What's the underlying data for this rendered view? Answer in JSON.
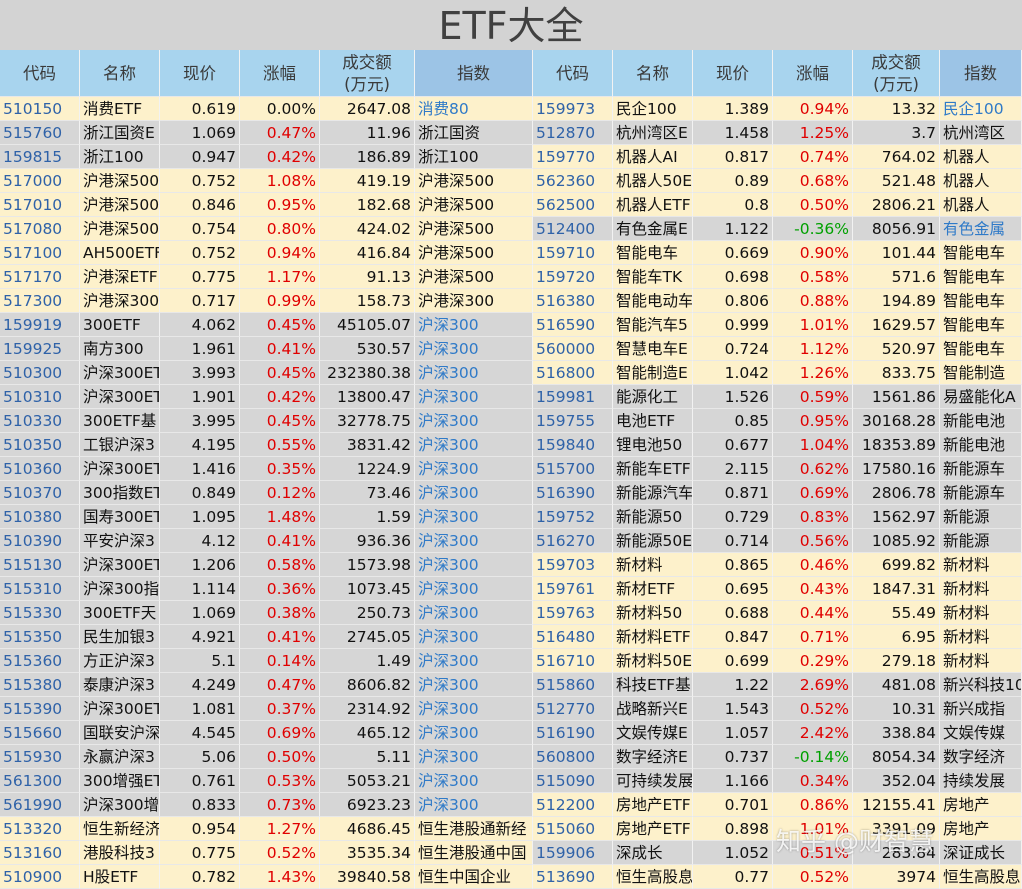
{
  "title": "ETF大全",
  "headers": [
    "代码",
    "名称",
    "现价",
    "涨幅",
    "成交额",
    "指数"
  ],
  "amount_unit": "(万元)",
  "watermark": "知乎 @财智慧",
  "left_rows": [
    {
      "bg": "#fdf1cb",
      "link": true,
      "cells": [
        "510150",
        "消费ETF",
        0.619,
        "0.00%",
        2647.08,
        "消费80"
      ]
    },
    {
      "bg": "#d6d6d6",
      "cells": [
        "515760",
        "浙江国资E",
        1.069,
        "0.47%",
        11.96,
        "浙江国资"
      ]
    },
    {
      "bg": "#d6d6d6",
      "cells": [
        "159815",
        "浙江100",
        0.947,
        "0.42%",
        186.89,
        "浙江100"
      ]
    },
    {
      "bg": "#fdf1cb",
      "cells": [
        "517000",
        "沪港深500",
        0.752,
        "1.08%",
        419.19,
        "沪港深500"
      ]
    },
    {
      "bg": "#fdf1cb",
      "cells": [
        "517010",
        "沪港深500",
        0.846,
        "0.95%",
        182.68,
        "沪港深500"
      ]
    },
    {
      "bg": "#fdf1cb",
      "cells": [
        "517080",
        "沪港深500",
        0.754,
        "0.80%",
        424.02,
        "沪港深500"
      ]
    },
    {
      "bg": "#fdf1cb",
      "cells": [
        "517100",
        "AH500ETF",
        0.752,
        "0.94%",
        416.84,
        "沪港深500"
      ]
    },
    {
      "bg": "#fdf1cb",
      "cells": [
        "517170",
        "沪港深ETF",
        0.775,
        "1.17%",
        91.13,
        "沪港深500"
      ]
    },
    {
      "bg": "#fdf1cb",
      "cells": [
        "517300",
        "沪港深300",
        0.717,
        "0.99%",
        158.73,
        "沪港深300"
      ]
    },
    {
      "bg": "#d6d6d6",
      "link": true,
      "cells": [
        "159919",
        "300ETF",
        4.062,
        "0.45%",
        45105.07,
        "沪深300"
      ]
    },
    {
      "bg": "#d6d6d6",
      "link": true,
      "cells": [
        "159925",
        "南方300",
        1.961,
        "0.41%",
        530.57,
        "沪深300"
      ]
    },
    {
      "bg": "#d6d6d6",
      "link": true,
      "cells": [
        "510300",
        "沪深300ET",
        3.993,
        "0.45%",
        232380.38,
        "沪深300"
      ]
    },
    {
      "bg": "#d6d6d6",
      "link": true,
      "cells": [
        "510310",
        "沪深300ET",
        1.901,
        "0.42%",
        13800.47,
        "沪深300"
      ]
    },
    {
      "bg": "#d6d6d6",
      "link": true,
      "cells": [
        "510330",
        "300ETF基",
        3.995,
        "0.45%",
        32778.75,
        "沪深300"
      ]
    },
    {
      "bg": "#d6d6d6",
      "link": true,
      "cells": [
        "510350",
        "工银沪深3",
        4.195,
        "0.55%",
        3831.42,
        "沪深300"
      ]
    },
    {
      "bg": "#d6d6d6",
      "link": true,
      "cells": [
        "510360",
        "沪深300ET",
        1.416,
        "0.35%",
        1224.9,
        "沪深300"
      ]
    },
    {
      "bg": "#d6d6d6",
      "link": true,
      "cells": [
        "510370",
        "300指数ET",
        0.849,
        "0.12%",
        73.46,
        "沪深300"
      ]
    },
    {
      "bg": "#d6d6d6",
      "link": true,
      "cells": [
        "510380",
        "国寿300ET",
        1.095,
        "1.48%",
        1.59,
        "沪深300"
      ]
    },
    {
      "bg": "#d6d6d6",
      "link": true,
      "cells": [
        "510390",
        "平安沪深3",
        4.12,
        "0.41%",
        936.36,
        "沪深300"
      ]
    },
    {
      "bg": "#d6d6d6",
      "link": true,
      "cells": [
        "515130",
        "沪深300ET",
        1.206,
        "0.58%",
        1573.98,
        "沪深300"
      ]
    },
    {
      "bg": "#d6d6d6",
      "link": true,
      "cells": [
        "515310",
        "沪深300指",
        1.114,
        "0.36%",
        1073.45,
        "沪深300"
      ]
    },
    {
      "bg": "#d6d6d6",
      "link": true,
      "cells": [
        "515330",
        "300ETF天",
        1.069,
        "0.38%",
        250.73,
        "沪深300"
      ]
    },
    {
      "bg": "#d6d6d6",
      "link": true,
      "cells": [
        "515350",
        "民生加银3",
        4.921,
        "0.41%",
        2745.05,
        "沪深300"
      ]
    },
    {
      "bg": "#d6d6d6",
      "link": true,
      "cells": [
        "515360",
        "方正沪深3",
        5.1,
        "0.14%",
        1.49,
        "沪深300"
      ]
    },
    {
      "bg": "#d6d6d6",
      "link": true,
      "cells": [
        "515380",
        "泰康沪深3",
        4.249,
        "0.47%",
        8606.82,
        "沪深300"
      ]
    },
    {
      "bg": "#d6d6d6",
      "link": true,
      "cells": [
        "515390",
        "沪深300ET",
        1.081,
        "0.37%",
        2314.92,
        "沪深300"
      ]
    },
    {
      "bg": "#d6d6d6",
      "link": true,
      "cells": [
        "515660",
        "国联安沪深",
        4.545,
        "0.69%",
        465.12,
        "沪深300"
      ]
    },
    {
      "bg": "#d6d6d6",
      "link": true,
      "cells": [
        "515930",
        "永赢沪深3",
        5.06,
        "0.50%",
        5.11,
        "沪深300"
      ]
    },
    {
      "bg": "#d6d6d6",
      "link": true,
      "cells": [
        "561300",
        "300增强ET",
        0.761,
        "0.53%",
        5053.21,
        "沪深300"
      ]
    },
    {
      "bg": "#d6d6d6",
      "link": true,
      "cells": [
        "561990",
        "沪深300增",
        0.833,
        "0.73%",
        6923.23,
        "沪深300"
      ]
    },
    {
      "bg": "#fdf1cb",
      "cells": [
        "513320",
        "恒生新经济",
        0.954,
        "1.27%",
        4686.45,
        "恒生港股通新经"
      ]
    },
    {
      "bg": "#fdf1cb",
      "cells": [
        "513160",
        "港股科技3",
        0.775,
        "0.52%",
        3535.34,
        "恒生港股通中国"
      ]
    },
    {
      "bg": "#fdf1cb",
      "cells": [
        "510900",
        "H股ETF",
        0.782,
        "1.43%",
        39840.58,
        "恒生中国企业"
      ]
    }
  ],
  "right_rows": [
    {
      "bg": "#fdf1cb",
      "link": true,
      "cells": [
        "159973",
        "民企100",
        1.389,
        "0.94%",
        13.32,
        "民企100"
      ]
    },
    {
      "bg": "#d6d6d6",
      "cells": [
        "512870",
        "杭州湾区E",
        1.458,
        "1.25%",
        3.7,
        "杭州湾区"
      ]
    },
    {
      "bg": "#fdf1cb",
      "cells": [
        "159770",
        "机器人AI",
        0.817,
        "0.74%",
        764.02,
        "机器人"
      ]
    },
    {
      "bg": "#fdf1cb",
      "cells": [
        "562360",
        "机器人50E",
        0.89,
        "0.68%",
        521.48,
        "机器人"
      ]
    },
    {
      "bg": "#fdf1cb",
      "cells": [
        "562500",
        "机器人ETF",
        0.8,
        "0.50%",
        2806.21,
        "机器人"
      ]
    },
    {
      "bg": "#d6d6d6",
      "link": true,
      "cells": [
        "512400",
        "有色金属E",
        1.122,
        "-0.36%",
        8056.91,
        "有色金属"
      ]
    },
    {
      "bg": "#fdf1cb",
      "cells": [
        "159710",
        "智能电车",
        0.669,
        "0.90%",
        101.44,
        "智能电车"
      ]
    },
    {
      "bg": "#fdf1cb",
      "cells": [
        "159720",
        "智能车TK",
        0.698,
        "0.58%",
        571.6,
        "智能电车"
      ]
    },
    {
      "bg": "#fdf1cb",
      "cells": [
        "516380",
        "智能电动车",
        0.806,
        "0.88%",
        194.89,
        "智能电车"
      ]
    },
    {
      "bg": "#fdf1cb",
      "cells": [
        "516590",
        "智能汽车5",
        0.999,
        "1.01%",
        1629.57,
        "智能电车"
      ]
    },
    {
      "bg": "#fdf1cb",
      "cells": [
        "560000",
        "智慧电车E",
        0.724,
        "1.12%",
        520.97,
        "智能电车"
      ]
    },
    {
      "bg": "#fdf1cb",
      "cells": [
        "516800",
        "智能制造E",
        1.042,
        "1.26%",
        833.75,
        "智能制造"
      ]
    },
    {
      "bg": "#d6d6d6",
      "cells": [
        "159981",
        "能源化工",
        1.526,
        "0.59%",
        1561.86,
        "易盛能化A"
      ]
    },
    {
      "bg": "#d6d6d6",
      "cells": [
        "159755",
        "电池ETF",
        0.85,
        "0.95%",
        30168.28,
        "新能电池"
      ]
    },
    {
      "bg": "#d6d6d6",
      "cells": [
        "159840",
        "锂电池50",
        0.677,
        "1.04%",
        18353.89,
        "新能电池"
      ]
    },
    {
      "bg": "#d6d6d6",
      "cells": [
        "515700",
        "新能车ETF",
        2.115,
        "0.62%",
        17580.16,
        "新能源车"
      ]
    },
    {
      "bg": "#d6d6d6",
      "cells": [
        "516390",
        "新能源汽车",
        0.871,
        "0.69%",
        2806.78,
        "新能源车"
      ]
    },
    {
      "bg": "#d6d6d6",
      "cells": [
        "159752",
        "新能源50",
        0.729,
        "0.83%",
        1562.97,
        "新能源"
      ]
    },
    {
      "bg": "#d6d6d6",
      "cells": [
        "516270",
        "新能源50E",
        0.714,
        "0.56%",
        1085.92,
        "新能源"
      ]
    },
    {
      "bg": "#fdf1cb",
      "cells": [
        "159703",
        "新材料",
        0.865,
        "0.46%",
        699.82,
        "新材料"
      ]
    },
    {
      "bg": "#fdf1cb",
      "cells": [
        "159761",
        "新材ETF",
        0.695,
        "0.43%",
        1847.31,
        "新材料"
      ]
    },
    {
      "bg": "#fdf1cb",
      "cells": [
        "159763",
        "新材料50",
        0.688,
        "0.44%",
        55.49,
        "新材料"
      ]
    },
    {
      "bg": "#fdf1cb",
      "cells": [
        "516480",
        "新材料ETF",
        0.847,
        "0.71%",
        6.95,
        "新材料"
      ]
    },
    {
      "bg": "#fdf1cb",
      "cells": [
        "516710",
        "新材料50E",
        0.699,
        "0.29%",
        279.18,
        "新材料"
      ]
    },
    {
      "bg": "#d6d6d6",
      "cells": [
        "515860",
        "科技ETF基",
        1.22,
        "2.69%",
        481.08,
        "新兴科技10"
      ]
    },
    {
      "bg": "#d6d6d6",
      "cells": [
        "512770",
        "战略新兴E",
        1.543,
        "0.52%",
        10.31,
        "新兴成指"
      ]
    },
    {
      "bg": "#d6d6d6",
      "cells": [
        "516190",
        "文娱传媒E",
        1.057,
        "2.42%",
        338.84,
        "文娱传媒"
      ]
    },
    {
      "bg": "#d6d6d6",
      "cells": [
        "560800",
        "数字经济E",
        0.737,
        "-0.14%",
        8054.34,
        "数字经济"
      ]
    },
    {
      "bg": "#d6d6d6",
      "cells": [
        "515090",
        "可持续发展",
        1.166,
        "0.34%",
        352.04,
        "持续发展"
      ]
    },
    {
      "bg": "#fdf1cb",
      "cells": [
        "512200",
        "房地产ETF",
        0.701,
        "0.86%",
        12155.41,
        "房地产"
      ]
    },
    {
      "bg": "#fdf1cb",
      "cells": [
        "515060",
        "房地产ETF",
        0.898,
        "1.01%",
        3391.09,
        "房地产"
      ]
    },
    {
      "bg": "#d6d6d6",
      "cells": [
        "159906",
        "深成长",
        1.052,
        "0.51%",
        283.84,
        "深证成长"
      ]
    },
    {
      "bg": "#fdf1cb",
      "cells": [
        "513690",
        "恒生高股息",
        0.77,
        "0.52%",
        3974,
        "恒生高股息"
      ]
    }
  ]
}
